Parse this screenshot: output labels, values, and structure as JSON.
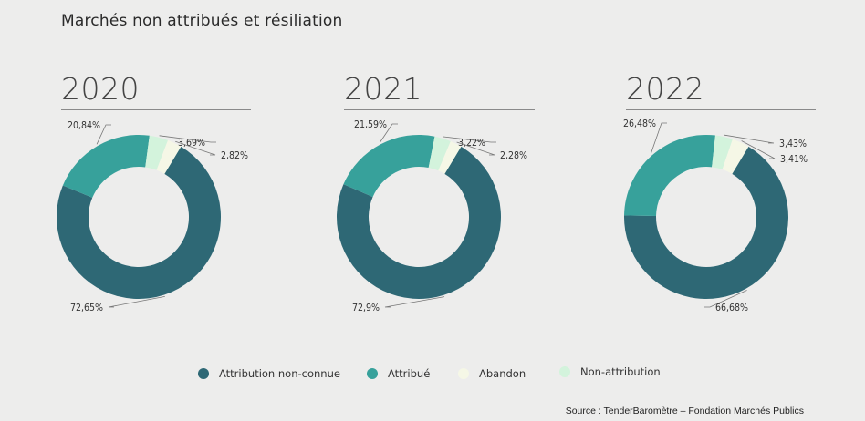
{
  "title": "Marchés non attribués et résiliation",
  "source": "Source : TenderBaromètre – Fondation Marchés Publics",
  "legend": [
    {
      "label": "Attribution non-connue",
      "color": "#2e6875"
    },
    {
      "label": "Attribué",
      "color": "#37a19b"
    },
    {
      "label": "Abandon",
      "color": "#f5f7e6"
    },
    {
      "label": "Non-attribution",
      "color": "#d3f3dc"
    }
  ],
  "chart_data": [
    {
      "type": "pie",
      "title": "2020",
      "categories": [
        "Attribution non-connue",
        "Attribué",
        "Non-attribution",
        "Abandon"
      ],
      "values": [
        72.65,
        20.84,
        3.69,
        2.82
      ],
      "labels": [
        "72,65%",
        "20,84%",
        "3,69%",
        "2,82%"
      ]
    },
    {
      "type": "pie",
      "title": "2021",
      "categories": [
        "Attribution non-connue",
        "Attribué",
        "Non-attribution",
        "Abandon"
      ],
      "values": [
        72.9,
        21.59,
        3.22,
        2.28
      ],
      "labels": [
        "72,9%",
        "21,59%",
        "3,22%",
        "2,28%"
      ]
    },
    {
      "type": "pie",
      "title": "2022",
      "categories": [
        "Attribution non-connue",
        "Attribué",
        "Non-attribution",
        "Abandon"
      ],
      "values": [
        66.68,
        26.48,
        3.43,
        3.41
      ],
      "labels": [
        "66,68%",
        "26,48%",
        "3,43%",
        "3,41%"
      ]
    }
  ]
}
